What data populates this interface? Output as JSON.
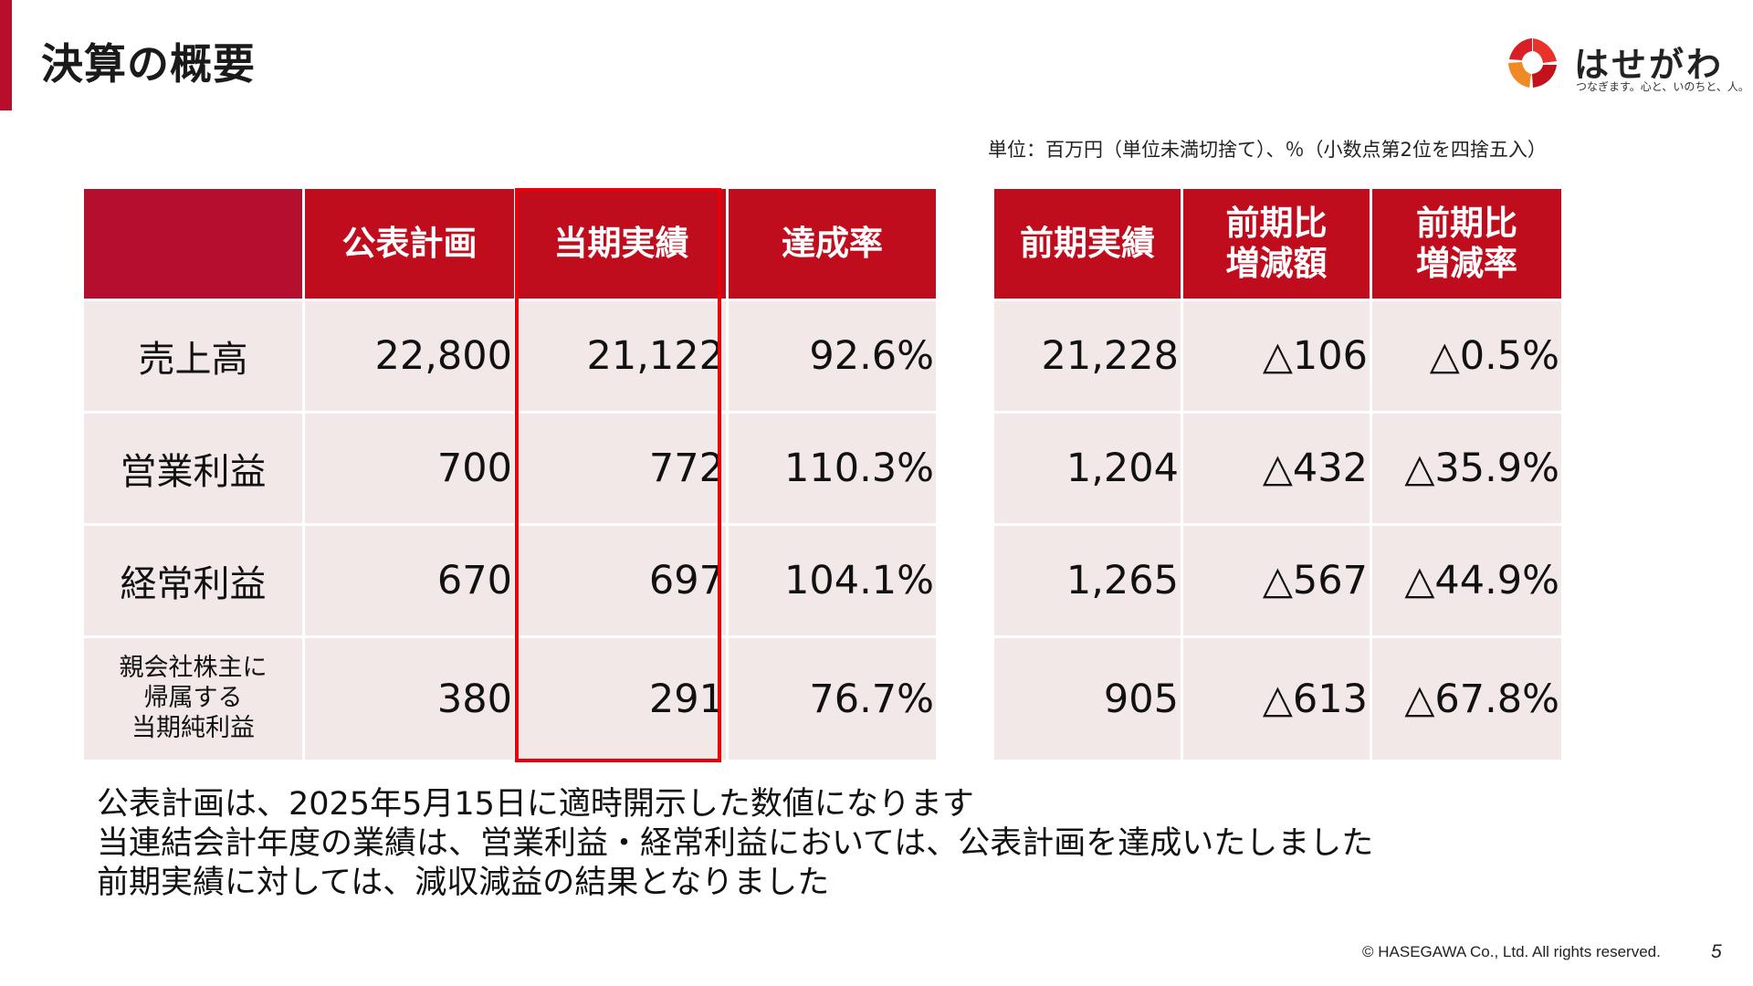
{
  "title": "決算の概要",
  "logo": {
    "name": "はせがわ",
    "tagline": "つなぎます。心と、いのちと、人。"
  },
  "unit_note": "単位：百万円（単位未満切捨て）、％（小数点第2位を四捨五入）",
  "left_table": {
    "headers": [
      "",
      "公表計画",
      "当期実績",
      "達成率"
    ],
    "rows": [
      {
        "label": "売上高",
        "plan": "22,800",
        "actual": "21,122",
        "rate": "92.6%"
      },
      {
        "label": "営業利益",
        "plan": "700",
        "actual": "772",
        "rate": "110.3%"
      },
      {
        "label": "経常利益",
        "plan": "670",
        "actual": "697",
        "rate": "104.1%"
      },
      {
        "label": "親会社株主に帰属する当期純利益",
        "label_lines": [
          "親会社株主に",
          "帰属する",
          "当期純利益"
        ],
        "plan": "380",
        "actual": "291",
        "rate": "76.7%"
      }
    ]
  },
  "right_table": {
    "headers": [
      {
        "lines": [
          "前期実績"
        ]
      },
      {
        "lines": [
          "前期比",
          "増減額"
        ]
      },
      {
        "lines": [
          "前期比",
          "増減率"
        ]
      }
    ],
    "rows": [
      {
        "prev": "21,228",
        "diff": "△106",
        "diff_rate": "△0.5%"
      },
      {
        "prev": "1,204",
        "diff": "△432",
        "diff_rate": "△35.9%"
      },
      {
        "prev": "1,265",
        "diff": "△567",
        "diff_rate": "△44.9%"
      },
      {
        "prev": "905",
        "diff": "△613",
        "diff_rate": "△67.8%"
      }
    ]
  },
  "notes": [
    "公表計画は、2025年5月15日に適時開示した数値になります",
    "当連結会計年度の業績は、営業利益・経常利益においては、公表計画を達成いたしました",
    "前期実績に対しては、減収減益の結果となりました"
  ],
  "footer": {
    "copyright": "© HASEGAWA Co., Ltd. All rights reserved.",
    "page_number": "5"
  },
  "colors": {
    "header_red": "#c00d1e",
    "header_blank": "#b50e2f",
    "cell_bg": "#f2e8e7",
    "highlight_border": "#e8000b",
    "title_accent": "#b80d2b"
  }
}
